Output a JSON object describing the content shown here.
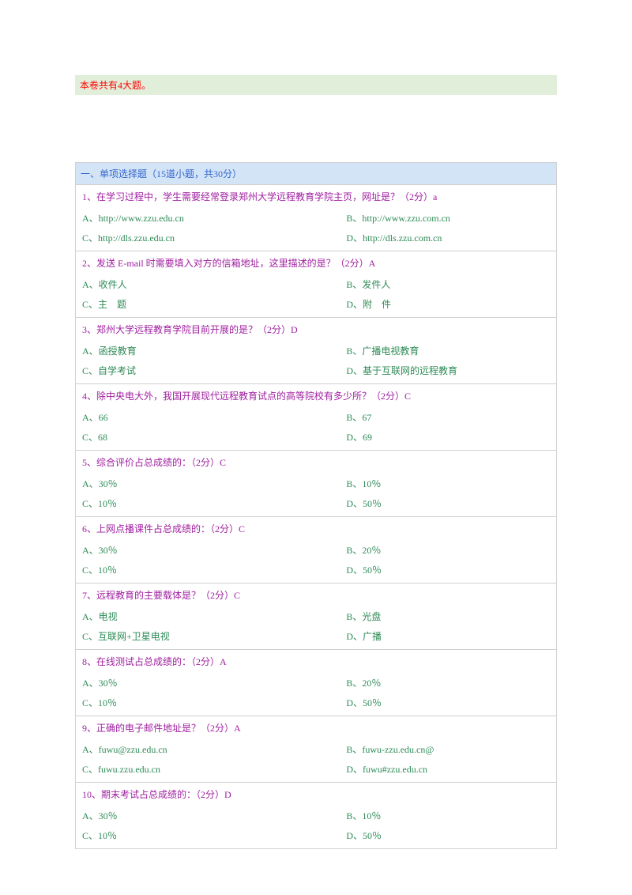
{
  "banner": "本卷共有4大题。",
  "sectionHeader": "一、单项选择题（15道小题，共30分）",
  "questions": [
    {
      "title": "1、在学习过程中，学生需要经常登录郑州大学远程教育学院主页，网址是？（2分）a",
      "a": "A、http://www.zzu.edu.cn",
      "b": "B、http://www.zzu.com.cn",
      "c": "C、http://dls.zzu.edu.cn",
      "d": "D、http://dls.zzu.com.cn"
    },
    {
      "title": "2、发送 E-mail 时需要填入对方的信箱地址，这里描述的是？（2分）A",
      "a": "A、收件人",
      "b": "B、发件人",
      "c": "C、主　题",
      "d": "D、附　件"
    },
    {
      "title": "3、郑州大学远程教育学院目前开展的是？（2分）D",
      "a": "A、函授教育",
      "b": "B、广播电视教育",
      "c": "C、自学考试",
      "d": "D、基于互联网的远程教育"
    },
    {
      "title": "4、除中央电大外，我国开展现代远程教育试点的高等院校有多少所？（2分）C",
      "a": "A、66",
      "b": "B、67",
      "c": "C、68",
      "d": "D、69"
    },
    {
      "title": "5、综合评价占总成绩的：（2分）C",
      "a": "A、30％",
      "b": "B、10％",
      "c": "C、10％",
      "d": "D、50％"
    },
    {
      "title": "6、上网点播课件占总成绩的：（2分）C",
      "a": "A、30％",
      "b": "B、20％",
      "c": "C、10％",
      "d": "D、50％"
    },
    {
      "title": "7、远程教育的主要载体是？（2分）C",
      "a": "A、电视",
      "b": "B、光盘",
      "c": "C、互联网+卫星电视",
      "d": "D、广播"
    },
    {
      "title": "8、在线测试占总成绩的：（2分）A",
      "a": "A、30％",
      "b": "B、20％",
      "c": "C、10％",
      "d": "D、50％"
    },
    {
      "title": "9、正确的电子邮件地址是？（2分）A",
      "a": "A、fuwu@zzu.edu.cn",
      "b": "B、fuwu-zzu.edu.cn@",
      "c": "C、fuwu.zzu.edu.cn",
      "d": "D、fuwu#zzu.edu.cn"
    },
    {
      "title": "10、期末考试占总成绩的：（2分）D",
      "a": "A、30％",
      "b": "B、10％",
      "c": "C、10％",
      "d": "D、50％"
    }
  ]
}
